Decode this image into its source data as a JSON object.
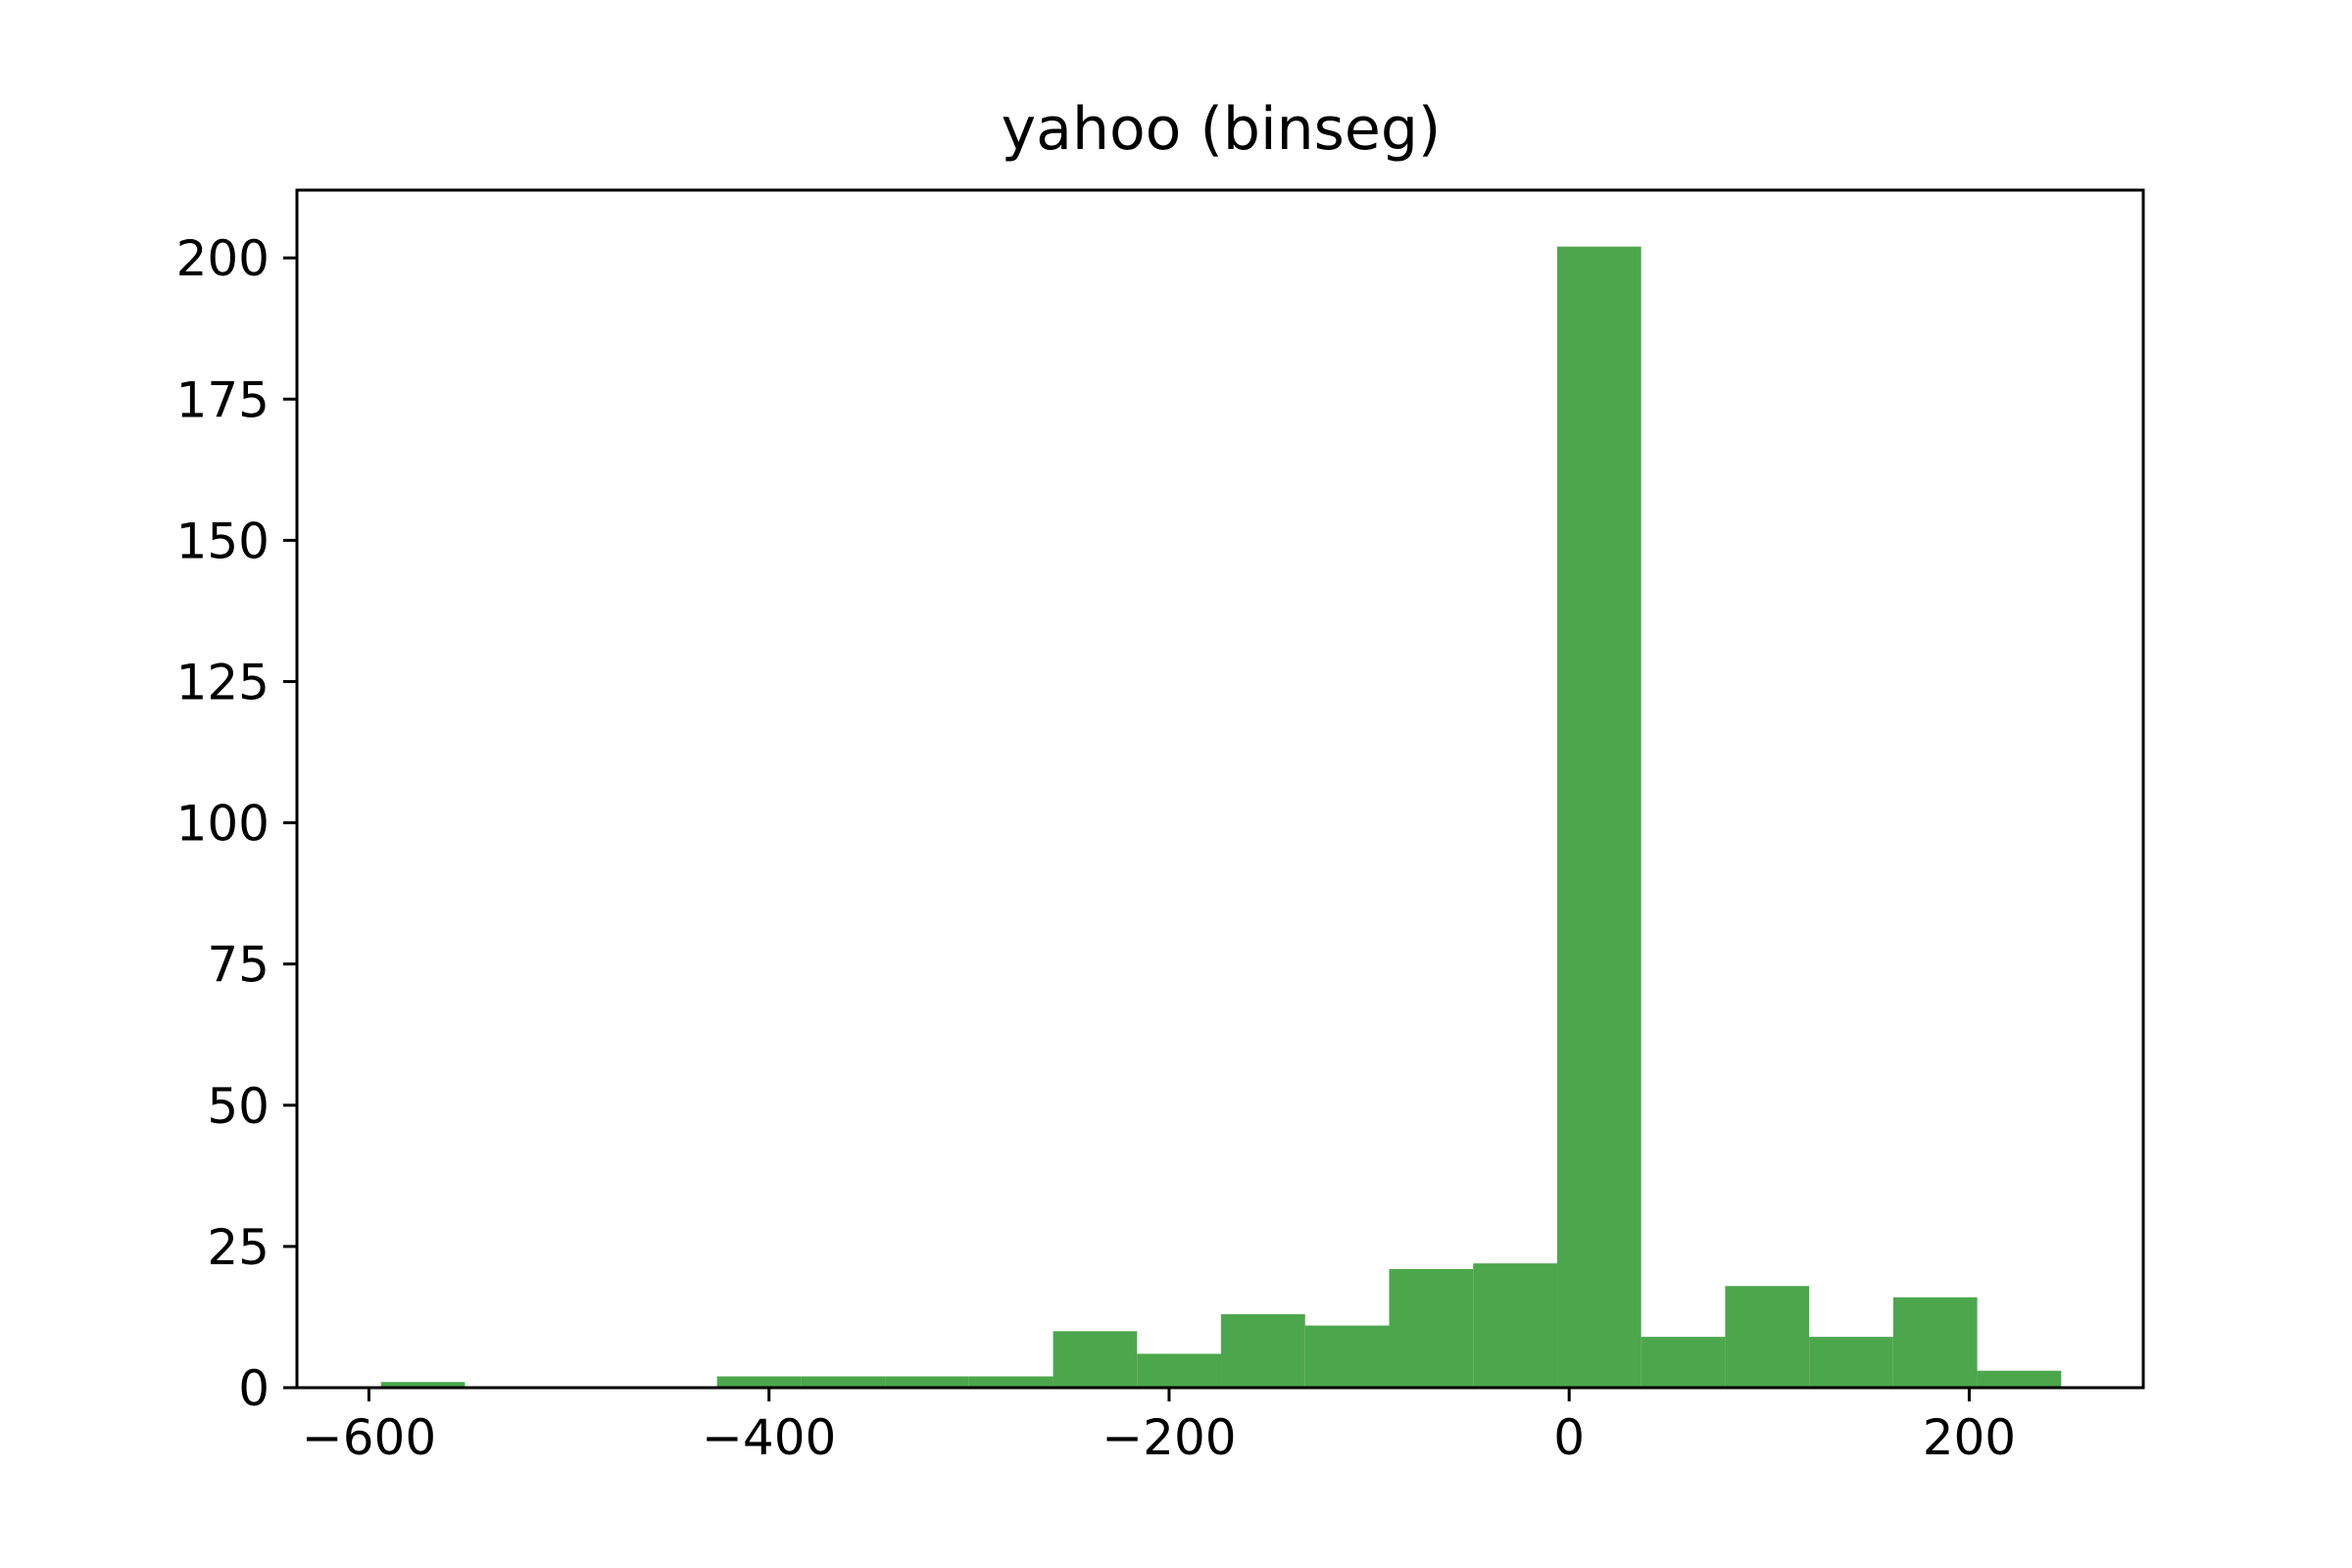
{
  "chart_data": {
    "type": "bar",
    "title": "yahoo (binseg)",
    "xlabel": "",
    "ylabel": "",
    "xlim": [
      -636,
      287
    ],
    "ylim": [
      0,
      212
    ],
    "xticks": [
      -600,
      -400,
      -200,
      0,
      200
    ],
    "xtick_labels": [
      "−600",
      "−400",
      "−200",
      "0",
      "200"
    ],
    "yticks": [
      0,
      25,
      50,
      75,
      100,
      125,
      150,
      175,
      200
    ],
    "ytick_labels": [
      "0",
      "25",
      "50",
      "75",
      "100",
      "125",
      "150",
      "175",
      "200"
    ],
    "grid": false,
    "legend": "none",
    "bar_color": "#4ca64c",
    "bins": [
      {
        "x0": -594,
        "x1": -552,
        "value": 1
      },
      {
        "x0": -552,
        "x1": -510,
        "value": 0
      },
      {
        "x0": -510,
        "x1": -468,
        "value": 0
      },
      {
        "x0": -468,
        "x1": -426,
        "value": 0
      },
      {
        "x0": -426,
        "x1": -384,
        "value": 2
      },
      {
        "x0": -384,
        "x1": -342,
        "value": 2
      },
      {
        "x0": -342,
        "x1": -300,
        "value": 2
      },
      {
        "x0": -300,
        "x1": -258,
        "value": 2
      },
      {
        "x0": -258,
        "x1": -216,
        "value": 10
      },
      {
        "x0": -216,
        "x1": -174,
        "value": 6
      },
      {
        "x0": -174,
        "x1": -132,
        "value": 13
      },
      {
        "x0": -132,
        "x1": -90,
        "value": 11
      },
      {
        "x0": -90,
        "x1": -48,
        "value": 21
      },
      {
        "x0": -48,
        "x1": -6,
        "value": 22
      },
      {
        "x0": -6,
        "x1": 36,
        "value": 202
      },
      {
        "x0": 36,
        "x1": 78,
        "value": 9
      },
      {
        "x0": 78,
        "x1": 120,
        "value": 18
      },
      {
        "x0": 120,
        "x1": 162,
        "value": 9
      },
      {
        "x0": 162,
        "x1": 204,
        "value": 16
      },
      {
        "x0": 204,
        "x1": 246,
        "value": 3
      }
    ]
  }
}
